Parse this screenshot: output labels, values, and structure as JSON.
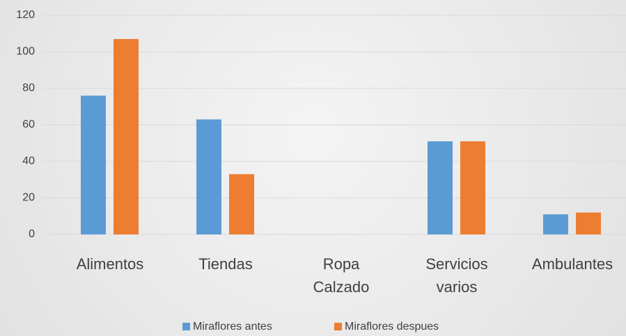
{
  "chart_data": {
    "type": "bar",
    "categories": [
      [
        "Alimentos"
      ],
      [
        "Tiendas"
      ],
      [
        "Ropa",
        "Calzado"
      ],
      [
        "Servicios",
        "varios"
      ],
      [
        "Ambulantes"
      ]
    ],
    "series": [
      {
        "name": "Miraflores antes",
        "color": "#5b9bd5",
        "values": [
          76,
          63,
          0,
          51,
          11
        ]
      },
      {
        "name": "Miraflores despues",
        "color": "#ed7d31",
        "values": [
          107,
          33,
          0,
          51,
          12
        ]
      }
    ],
    "ylim": [
      0,
      120
    ],
    "yticks": [
      0,
      20,
      40,
      60,
      80,
      100,
      120
    ],
    "grid": true,
    "legend": "bottom"
  }
}
